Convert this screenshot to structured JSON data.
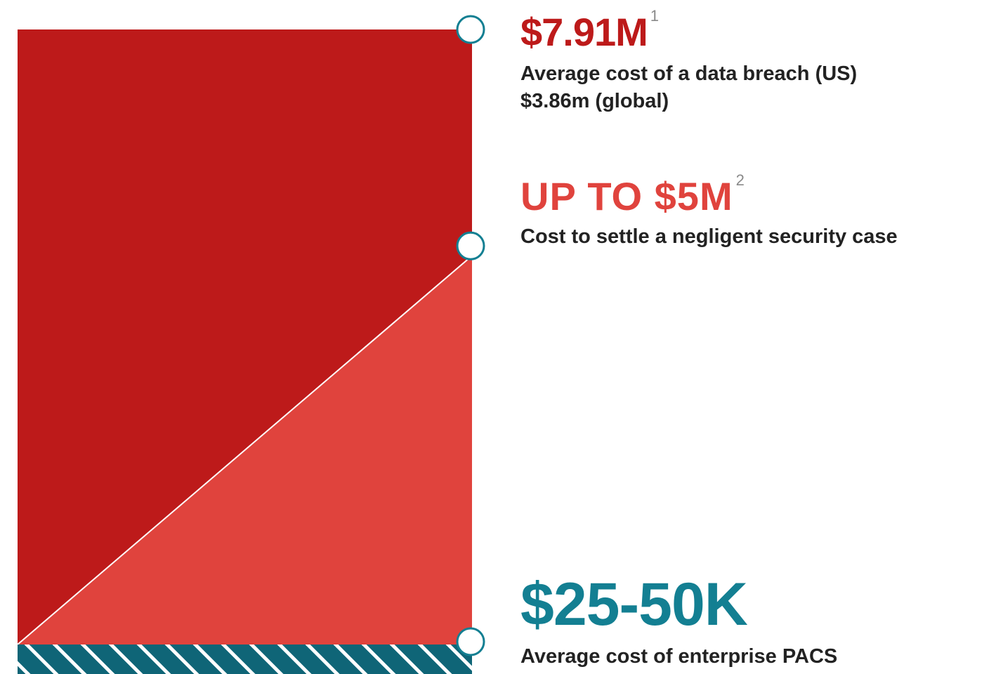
{
  "colors": {
    "breach": "#bd1a1a",
    "settle": "#e0433d",
    "pacs": "#0f6577",
    "marker_stroke": "#137f92",
    "pacs_text": "#137f92"
  },
  "chart_data": {
    "type": "area",
    "scale": "relative",
    "series": [
      {
        "key": "breach",
        "value_label": "$7.91M",
        "footnote": "1",
        "description": [
          "Average cost of a data breach (US)",
          "$3.86m (global)"
        ],
        "value": 7.91,
        "color": "#bd1a1a"
      },
      {
        "key": "settle",
        "value_label": "UP TO $5M",
        "footnote": "2",
        "description": [
          "Cost to settle a negligent security case"
        ],
        "value": 5.0,
        "color": "#e0433d"
      },
      {
        "key": "pacs",
        "value_label": "$25-50K",
        "footnote": "",
        "description": [
          "Average cost of enterprise PACS"
        ],
        "value": 0.05,
        "color": "#0f6577",
        "pattern": "diagonal-hatch"
      }
    ],
    "grid": false,
    "legend": "none",
    "markers": "open-circles-on-right-edge"
  },
  "callouts": {
    "breach": {
      "value": "$7.91M",
      "footnote": "1",
      "line1": "Average cost of a data breach (US)",
      "line2": "$3.86m (global)"
    },
    "settle": {
      "value": "UP TO $5M",
      "footnote": "2",
      "line1": "Cost to settle a negligent security case"
    },
    "pacs": {
      "value": "$25-50K",
      "line1": "Average cost of enterprise PACS"
    }
  }
}
